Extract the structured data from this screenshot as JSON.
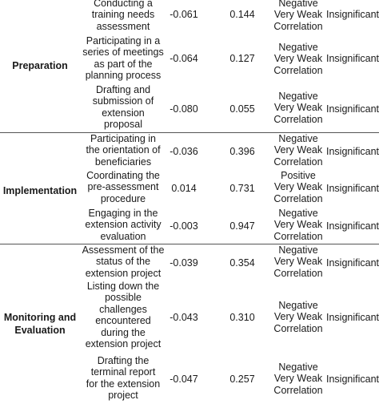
{
  "groups": [
    {
      "label": "Preparation",
      "rows": [
        {
          "activity": [
            "Conducting a",
            "training needs",
            "assessment"
          ],
          "r": "-0.061",
          "p": "0.144",
          "interpretation": [
            "Negative",
            "Very Weak",
            "Correlation"
          ],
          "significance": "Insignificant"
        },
        {
          "activity": [
            "Participating in a",
            "series of meetings",
            "as part of the",
            "planning process"
          ],
          "r": "-0.064",
          "p": "0.127",
          "interpretation": [
            "Negative",
            "Very Weak",
            "Correlation"
          ],
          "significance": "Insignificant"
        },
        {
          "activity": [
            "Drafting and",
            "submission of",
            "extension",
            "proposal"
          ],
          "r": "-0.080",
          "p": "0.055",
          "interpretation": [
            "Negative",
            "Very Weak",
            "Correlation"
          ],
          "significance": "Insignificant"
        }
      ]
    },
    {
      "label": "Implementation",
      "rows": [
        {
          "activity": [
            "Participating in",
            "the orientation of",
            "beneficiaries"
          ],
          "r": "-0.036",
          "p": "0.396",
          "interpretation": [
            "Negative",
            "Very Weak",
            "Correlation"
          ],
          "significance": "Insignificant"
        },
        {
          "activity": [
            "Coordinating the",
            "pre-assessment",
            "procedure"
          ],
          "r": "0.014",
          "p": "0.731",
          "interpretation": [
            "Positive",
            "Very Weak",
            "Correlation"
          ],
          "significance": "Insignificant"
        },
        {
          "activity": [
            "Engaging in the",
            "extension activity",
            "evaluation"
          ],
          "r": "-0.003",
          "p": "0.947",
          "interpretation": [
            "Negative",
            "Very Weak",
            "Correlation"
          ],
          "significance": "Insignificant"
        }
      ]
    },
    {
      "label": [
        "Monitoring and",
        "Evaluation"
      ],
      "rows": [
        {
          "activity": [
            "Assessment of the",
            "status of the",
            "extension project"
          ],
          "r": "-0.039",
          "p": "0.354",
          "interpretation": [
            "Negative",
            "Very Weak",
            "Correlation"
          ],
          "significance": "Insignificant"
        },
        {
          "activity": [
            "Listing down the",
            "possible",
            "challenges",
            "encountered",
            "during the",
            "extension project"
          ],
          "r": "-0.043",
          "p": "0.310",
          "interpretation": [
            "Negative",
            "Very Weak",
            "Correlation"
          ],
          "significance": "Insignificant"
        },
        {
          "activity": [
            "Drafting the",
            "terminal report",
            "for the extension",
            "project"
          ],
          "r": "-0.047",
          "p": "0.257",
          "interpretation": [
            "Negative",
            "Very Weak",
            "Correlation"
          ],
          "significance": "Insignificant"
        }
      ]
    }
  ]
}
